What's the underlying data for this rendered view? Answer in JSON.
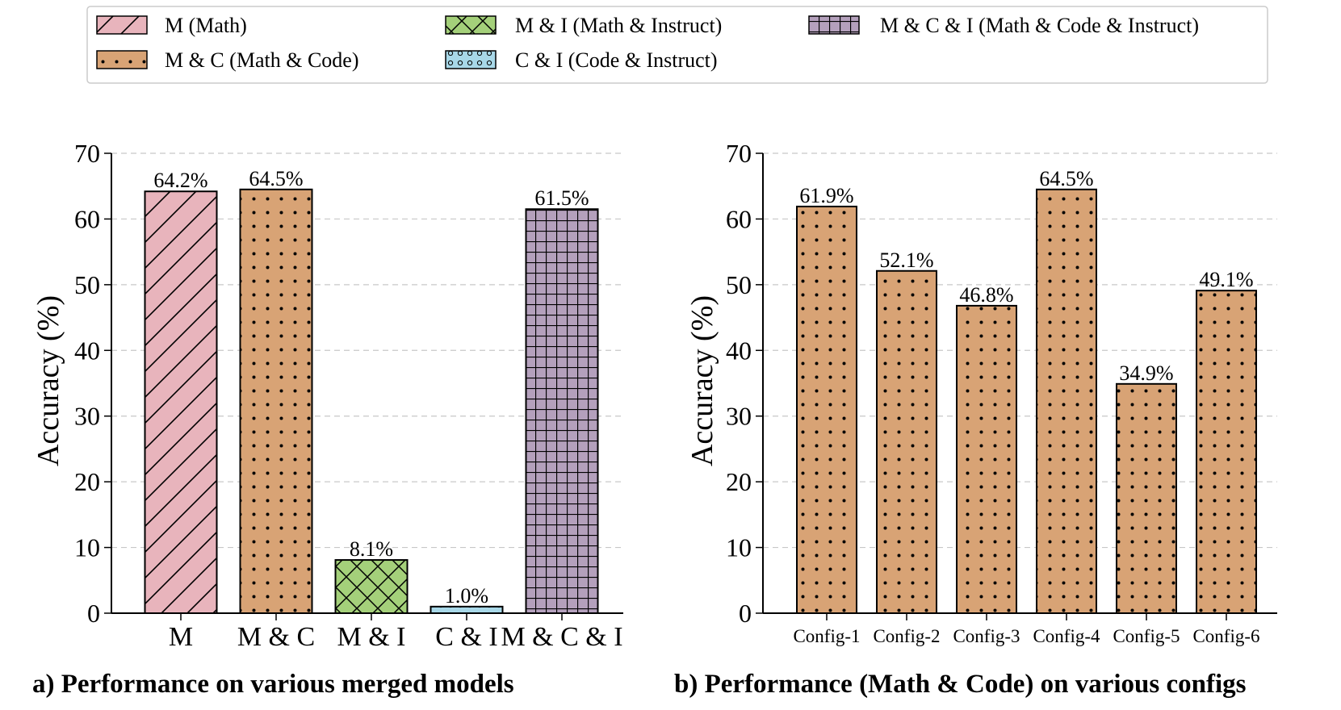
{
  "legend": [
    {
      "label": "M (Math)",
      "color": "#e8b4bc",
      "pattern": "diagonal"
    },
    {
      "label": "M & C (Math & Code)",
      "color": "#d8a375",
      "pattern": "dots"
    },
    {
      "label": "M & I (Math & Instruct)",
      "color": "#a4d07a",
      "pattern": "crosshatch"
    },
    {
      "label": "C & I (Code & Instruct)",
      "color": "#a8d8e8",
      "pattern": "circles"
    },
    {
      "label": "M & C & I (Math & Code & Instruct)",
      "color": "#b4a0bc",
      "pattern": "grid"
    }
  ],
  "chart_data": [
    {
      "type": "bar",
      "title": "a) Performance on various merged models",
      "xlabel": "",
      "ylabel": "Accuracy (%)",
      "ylim": [
        0,
        70
      ],
      "yticks": [
        0,
        10,
        20,
        30,
        40,
        50,
        60,
        70
      ],
      "grid": "y-dashed",
      "categories": [
        "M",
        "M & C",
        "M & I",
        "C & I",
        "M & C & I"
      ],
      "values": [
        64.2,
        64.5,
        8.1,
        1.0,
        61.5
      ],
      "value_labels": [
        "64.2%",
        "64.5%",
        "8.1%",
        "1.0%",
        "61.5%"
      ],
      "legend_index": [
        0,
        1,
        2,
        3,
        4
      ]
    },
    {
      "type": "bar",
      "title": "b) Performance (Math & Code) on various configs",
      "xlabel": "",
      "ylabel": "Accuracy (%)",
      "ylim": [
        0,
        70
      ],
      "yticks": [
        0,
        10,
        20,
        30,
        40,
        50,
        60,
        70
      ],
      "grid": "y-dashed",
      "categories": [
        "Config-1",
        "Config-2",
        "Config-3",
        "Config-4",
        "Config-5",
        "Config-6"
      ],
      "values": [
        61.9,
        52.1,
        46.8,
        64.5,
        34.9,
        49.1
      ],
      "value_labels": [
        "61.9%",
        "52.1%",
        "46.8%",
        "64.5%",
        "34.9%",
        "49.1%"
      ],
      "legend_index": [
        1,
        1,
        1,
        1,
        1,
        1
      ]
    }
  ]
}
